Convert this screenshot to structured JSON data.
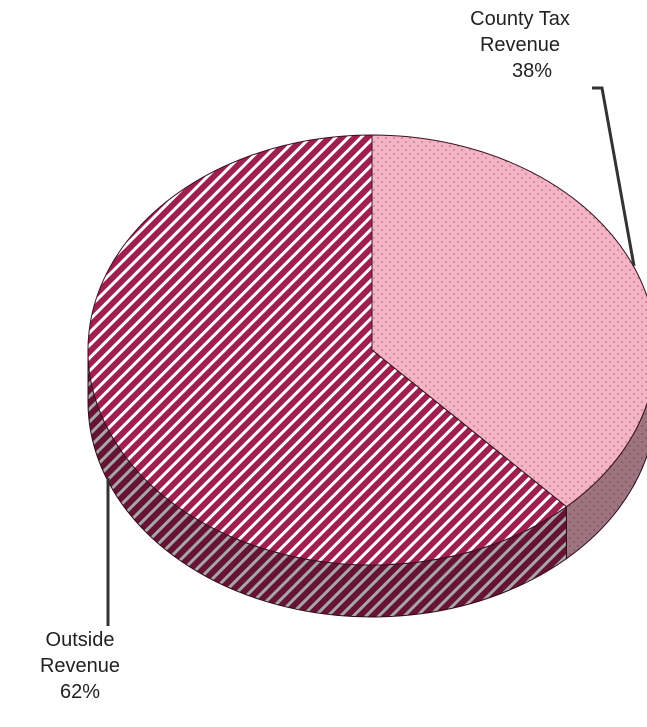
{
  "chart_data": {
    "type": "pie",
    "categories": [
      "County Tax Revenue",
      "Outside Revenue"
    ],
    "values": [
      38,
      62
    ],
    "value_labels": [
      "38%",
      "62%"
    ],
    "colors": [
      "#f5b3c6",
      "#9e1f50"
    ]
  }
}
